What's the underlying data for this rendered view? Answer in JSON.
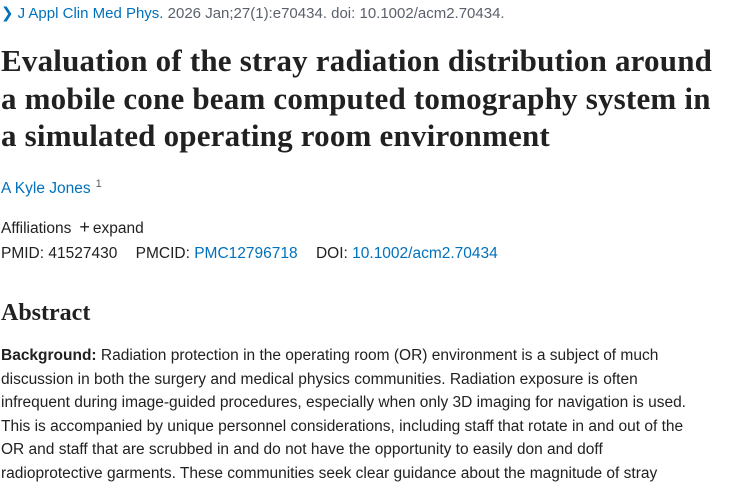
{
  "citation": {
    "journal": "J Appl Clin Med Phys.",
    "details": "2026 Jan;27(1):e70434. doi: 10.1002/acm2.70434."
  },
  "title_lines": [
    "Evaluation of the stray radiation distribution around",
    "a mobile cone beam computed tomography system in",
    "a simulated operating room environment"
  ],
  "authors": [
    {
      "name": "A Kyle Jones",
      "affiliation_ref": "1"
    }
  ],
  "affiliations": {
    "label": "Affiliations",
    "toggle": "expand"
  },
  "identifiers": {
    "pmid_label": "PMID:",
    "pmid": "41527430",
    "pmcid_label": "PMCID:",
    "pmcid": "PMC12796718",
    "doi_label": "DOI:",
    "doi": "10.1002/acm2.70434"
  },
  "abstract": {
    "heading": "Abstract",
    "sections": [
      {
        "label": "Background:",
        "lines": [
          "Radiation protection in the operating room (OR) environment is a subject of much",
          "discussion in both the surgery and medical physics communities. Radiation exposure is often",
          "infrequent during image-guided procedures, especially when only 3D imaging for navigation is used.",
          "This is accompanied by unique personnel considerations, including staff that rotate in and out of the",
          "OR and staff that are scrubbed in and do not have the opportunity to easily don and doff",
          "radioprotective garments. These communities seek clear guidance about the magnitude of stray"
        ]
      }
    ]
  }
}
